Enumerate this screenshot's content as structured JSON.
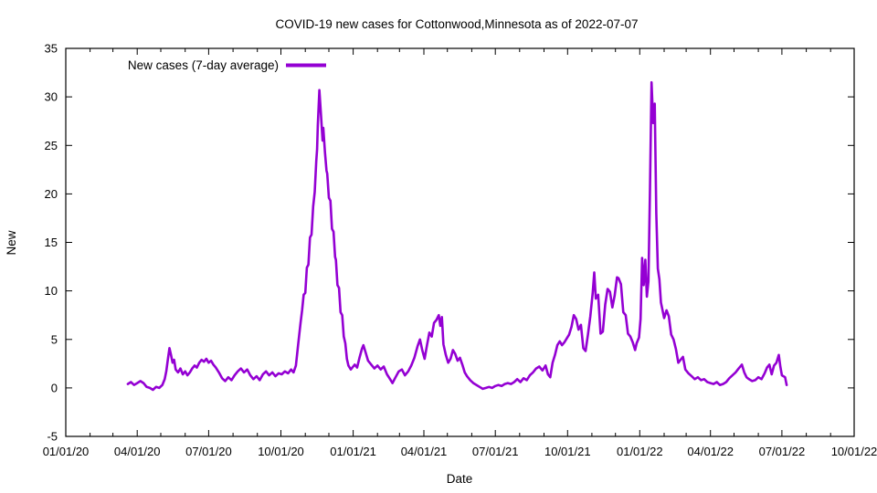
{
  "window": {
    "background": "#ffffff"
  },
  "chart_data": {
    "type": "line",
    "title": "COVID-19 new cases for Cottonwood,Minnesota as of 2022-07-07",
    "xlabel": "Date",
    "ylabel": "New",
    "ylim": [
      -5,
      35
    ],
    "y_ticks": [
      -5,
      0,
      5,
      10,
      15,
      20,
      25,
      30,
      35
    ],
    "x_tick_labels": [
      "01/01/20",
      "04/01/20",
      "07/01/20",
      "10/01/20",
      "01/01/21",
      "04/01/21",
      "07/01/21",
      "10/01/21",
      "01/01/22",
      "04/01/22",
      "07/01/22",
      "10/01/22"
    ],
    "x_minor_ticks": "monthly",
    "grid": false,
    "axis_color": "#000000",
    "legend": {
      "label": "New cases (7-day average)",
      "position": "inside-top-left"
    },
    "series": [
      {
        "name": "New cases (7-day average)",
        "color": "#9400d3",
        "points": [
          [
            "2020-03-20",
            0.4
          ],
          [
            "2020-03-24",
            0.6
          ],
          [
            "2020-03-28",
            0.3
          ],
          [
            "2020-04-01",
            0.5
          ],
          [
            "2020-04-05",
            0.7
          ],
          [
            "2020-04-09",
            0.5
          ],
          [
            "2020-04-13",
            0.1
          ],
          [
            "2020-04-17",
            0.0
          ],
          [
            "2020-04-21",
            -0.2
          ],
          [
            "2020-04-25",
            0.1
          ],
          [
            "2020-04-29",
            0.0
          ],
          [
            "2020-05-03",
            0.3
          ],
          [
            "2020-05-06",
            0.9
          ],
          [
            "2020-05-08",
            1.7
          ],
          [
            "2020-05-10",
            2.9
          ],
          [
            "2020-05-12",
            4.1
          ],
          [
            "2020-05-14",
            3.4
          ],
          [
            "2020-05-16",
            2.6
          ],
          [
            "2020-05-18",
            2.9
          ],
          [
            "2020-05-20",
            1.9
          ],
          [
            "2020-05-23",
            1.6
          ],
          [
            "2020-05-26",
            2.0
          ],
          [
            "2020-05-29",
            1.4
          ],
          [
            "2020-06-01",
            1.7
          ],
          [
            "2020-06-04",
            1.3
          ],
          [
            "2020-06-07",
            1.6
          ],
          [
            "2020-06-10",
            2.0
          ],
          [
            "2020-06-13",
            2.3
          ],
          [
            "2020-06-16",
            2.1
          ],
          [
            "2020-06-19",
            2.6
          ],
          [
            "2020-06-22",
            2.9
          ],
          [
            "2020-06-25",
            2.7
          ],
          [
            "2020-06-28",
            3.0
          ],
          [
            "2020-07-01",
            2.6
          ],
          [
            "2020-07-04",
            2.8
          ],
          [
            "2020-07-07",
            2.4
          ],
          [
            "2020-07-10",
            2.1
          ],
          [
            "2020-07-14",
            1.6
          ],
          [
            "2020-07-18",
            1.0
          ],
          [
            "2020-07-22",
            0.7
          ],
          [
            "2020-07-26",
            1.1
          ],
          [
            "2020-07-30",
            0.8
          ],
          [
            "2020-08-03",
            1.3
          ],
          [
            "2020-08-07",
            1.7
          ],
          [
            "2020-08-11",
            2.0
          ],
          [
            "2020-08-15",
            1.6
          ],
          [
            "2020-08-19",
            1.9
          ],
          [
            "2020-08-23",
            1.3
          ],
          [
            "2020-08-27",
            0.9
          ],
          [
            "2020-08-31",
            1.2
          ],
          [
            "2020-09-04",
            0.8
          ],
          [
            "2020-09-08",
            1.4
          ],
          [
            "2020-09-12",
            1.7
          ],
          [
            "2020-09-16",
            1.3
          ],
          [
            "2020-09-20",
            1.6
          ],
          [
            "2020-09-24",
            1.2
          ],
          [
            "2020-09-28",
            1.5
          ],
          [
            "2020-10-02",
            1.4
          ],
          [
            "2020-10-06",
            1.7
          ],
          [
            "2020-10-10",
            1.5
          ],
          [
            "2020-10-14",
            1.9
          ],
          [
            "2020-10-17",
            1.6
          ],
          [
            "2020-10-20",
            2.3
          ],
          [
            "2020-10-23",
            4.5
          ],
          [
            "2020-10-26",
            6.7
          ],
          [
            "2020-10-28",
            8.0
          ],
          [
            "2020-10-30",
            9.6
          ],
          [
            "2020-11-01",
            9.8
          ],
          [
            "2020-11-03",
            12.4
          ],
          [
            "2020-11-05",
            12.7
          ],
          [
            "2020-11-07",
            15.5
          ],
          [
            "2020-11-09",
            15.8
          ],
          [
            "2020-11-11",
            18.7
          ],
          [
            "2020-11-13",
            20.2
          ],
          [
            "2020-11-15",
            23.4
          ],
          [
            "2020-11-16",
            24.6
          ],
          [
            "2020-11-17",
            27.1
          ],
          [
            "2020-11-18",
            29.0
          ],
          [
            "2020-11-19",
            30.7
          ],
          [
            "2020-11-21",
            28.1
          ],
          [
            "2020-11-23",
            25.5
          ],
          [
            "2020-11-24",
            26.8
          ],
          [
            "2020-11-26",
            24.3
          ],
          [
            "2020-11-28",
            22.4
          ],
          [
            "2020-11-29",
            22.1
          ],
          [
            "2020-12-01",
            19.6
          ],
          [
            "2020-12-03",
            19.3
          ],
          [
            "2020-12-05",
            16.4
          ],
          [
            "2020-12-07",
            16.1
          ],
          [
            "2020-12-09",
            13.5
          ],
          [
            "2020-12-10",
            13.2
          ],
          [
            "2020-12-12",
            10.6
          ],
          [
            "2020-12-14",
            10.3
          ],
          [
            "2020-12-16",
            7.8
          ],
          [
            "2020-12-18",
            7.5
          ],
          [
            "2020-12-20",
            5.3
          ],
          [
            "2020-12-22",
            4.6
          ],
          [
            "2020-12-24",
            3.0
          ],
          [
            "2020-12-26",
            2.3
          ],
          [
            "2020-12-29",
            1.9
          ],
          [
            "2020-12-31",
            2.1
          ],
          [
            "2021-01-03",
            2.4
          ],
          [
            "2021-01-06",
            2.1
          ],
          [
            "2021-01-09",
            3.1
          ],
          [
            "2021-01-12",
            4.0
          ],
          [
            "2021-01-14",
            4.4
          ],
          [
            "2021-01-17",
            3.6
          ],
          [
            "2021-01-20",
            2.8
          ],
          [
            "2021-01-24",
            2.4
          ],
          [
            "2021-01-28",
            2.0
          ],
          [
            "2021-02-01",
            2.3
          ],
          [
            "2021-02-05",
            1.9
          ],
          [
            "2021-02-09",
            2.2
          ],
          [
            "2021-02-13",
            1.4
          ],
          [
            "2021-02-17",
            0.9
          ],
          [
            "2021-02-20",
            0.5
          ],
          [
            "2021-02-24",
            1.1
          ],
          [
            "2021-02-28",
            1.7
          ],
          [
            "2021-03-04",
            1.9
          ],
          [
            "2021-03-08",
            1.3
          ],
          [
            "2021-03-12",
            1.7
          ],
          [
            "2021-03-16",
            2.3
          ],
          [
            "2021-03-20",
            3.1
          ],
          [
            "2021-03-24",
            4.3
          ],
          [
            "2021-03-27",
            5.0
          ],
          [
            "2021-03-30",
            3.9
          ],
          [
            "2021-04-02",
            3.0
          ],
          [
            "2021-04-05",
            4.4
          ],
          [
            "2021-04-08",
            5.7
          ],
          [
            "2021-04-11",
            5.3
          ],
          [
            "2021-04-14",
            6.7
          ],
          [
            "2021-04-17",
            7.0
          ],
          [
            "2021-04-20",
            7.5
          ],
          [
            "2021-04-22",
            6.4
          ],
          [
            "2021-04-24",
            7.3
          ],
          [
            "2021-04-26",
            4.5
          ],
          [
            "2021-04-29",
            3.4
          ],
          [
            "2021-05-02",
            2.6
          ],
          [
            "2021-05-05",
            3.0
          ],
          [
            "2021-05-08",
            3.9
          ],
          [
            "2021-05-11",
            3.5
          ],
          [
            "2021-05-14",
            2.8
          ],
          [
            "2021-05-17",
            3.1
          ],
          [
            "2021-05-20",
            2.4
          ],
          [
            "2021-05-23",
            1.6
          ],
          [
            "2021-05-26",
            1.2
          ],
          [
            "2021-05-30",
            0.8
          ],
          [
            "2021-06-03",
            0.5
          ],
          [
            "2021-06-07",
            0.3
          ],
          [
            "2021-06-11",
            0.1
          ],
          [
            "2021-06-15",
            -0.1
          ],
          [
            "2021-06-19",
            0.0
          ],
          [
            "2021-06-23",
            0.1
          ],
          [
            "2021-06-27",
            0.0
          ],
          [
            "2021-07-01",
            0.2
          ],
          [
            "2021-07-05",
            0.3
          ],
          [
            "2021-07-09",
            0.2
          ],
          [
            "2021-07-13",
            0.4
          ],
          [
            "2021-07-17",
            0.5
          ],
          [
            "2021-07-21",
            0.4
          ],
          [
            "2021-07-25",
            0.6
          ],
          [
            "2021-07-29",
            0.9
          ],
          [
            "2021-08-02",
            0.6
          ],
          [
            "2021-08-06",
            1.0
          ],
          [
            "2021-08-10",
            0.8
          ],
          [
            "2021-08-14",
            1.3
          ],
          [
            "2021-08-18",
            1.6
          ],
          [
            "2021-08-22",
            2.0
          ],
          [
            "2021-08-26",
            2.2
          ],
          [
            "2021-08-30",
            1.8
          ],
          [
            "2021-09-03",
            2.3
          ],
          [
            "2021-09-06",
            1.4
          ],
          [
            "2021-09-09",
            1.1
          ],
          [
            "2021-09-12",
            2.6
          ],
          [
            "2021-09-15",
            3.4
          ],
          [
            "2021-09-18",
            4.4
          ],
          [
            "2021-09-21",
            4.8
          ],
          [
            "2021-09-24",
            4.4
          ],
          [
            "2021-09-27",
            4.7
          ],
          [
            "2021-09-30",
            5.1
          ],
          [
            "2021-10-03",
            5.5
          ],
          [
            "2021-10-06",
            6.3
          ],
          [
            "2021-10-09",
            7.5
          ],
          [
            "2021-10-12",
            7.1
          ],
          [
            "2021-10-15",
            6.0
          ],
          [
            "2021-10-18",
            6.5
          ],
          [
            "2021-10-21",
            4.1
          ],
          [
            "2021-10-24",
            3.8
          ],
          [
            "2021-10-27",
            5.5
          ],
          [
            "2021-10-30",
            7.4
          ],
          [
            "2021-11-02",
            9.8
          ],
          [
            "2021-11-04",
            11.9
          ],
          [
            "2021-11-06",
            9.2
          ],
          [
            "2021-11-09",
            9.6
          ],
          [
            "2021-11-12",
            5.6
          ],
          [
            "2021-11-15",
            5.8
          ],
          [
            "2021-11-18",
            8.6
          ],
          [
            "2021-11-21",
            10.2
          ],
          [
            "2021-11-24",
            9.9
          ],
          [
            "2021-11-27",
            8.3
          ],
          [
            "2021-11-30",
            9.5
          ],
          [
            "2021-12-03",
            11.4
          ],
          [
            "2021-12-05",
            11.3
          ],
          [
            "2021-12-08",
            10.7
          ],
          [
            "2021-12-11",
            7.8
          ],
          [
            "2021-12-14",
            7.5
          ],
          [
            "2021-12-17",
            5.6
          ],
          [
            "2021-12-20",
            5.3
          ],
          [
            "2021-12-23",
            4.7
          ],
          [
            "2021-12-26",
            3.9
          ],
          [
            "2021-12-28",
            4.6
          ],
          [
            "2021-12-31",
            5.2
          ],
          [
            "2022-01-02",
            7.1
          ],
          [
            "2022-01-04",
            13.4
          ],
          [
            "2022-01-06",
            10.6
          ],
          [
            "2022-01-08",
            13.2
          ],
          [
            "2022-01-10",
            9.4
          ],
          [
            "2022-01-12",
            11.0
          ],
          [
            "2022-01-14",
            20.5
          ],
          [
            "2022-01-16",
            31.5
          ],
          [
            "2022-01-18",
            27.3
          ],
          [
            "2022-01-20",
            29.3
          ],
          [
            "2022-01-22",
            18.0
          ],
          [
            "2022-01-24",
            12.3
          ],
          [
            "2022-01-26",
            11.2
          ],
          [
            "2022-01-28",
            8.8
          ],
          [
            "2022-02-01",
            7.2
          ],
          [
            "2022-02-04",
            8.0
          ],
          [
            "2022-02-07",
            7.4
          ],
          [
            "2022-02-10",
            5.5
          ],
          [
            "2022-02-13",
            5.0
          ],
          [
            "2022-02-16",
            4.0
          ],
          [
            "2022-02-19",
            2.6
          ],
          [
            "2022-02-22",
            2.9
          ],
          [
            "2022-02-25",
            3.2
          ],
          [
            "2022-02-28",
            1.9
          ],
          [
            "2022-03-04",
            1.5
          ],
          [
            "2022-03-08",
            1.2
          ],
          [
            "2022-03-12",
            0.9
          ],
          [
            "2022-03-16",
            1.1
          ],
          [
            "2022-03-20",
            0.8
          ],
          [
            "2022-03-24",
            0.9
          ],
          [
            "2022-03-28",
            0.6
          ],
          [
            "2022-04-01",
            0.5
          ],
          [
            "2022-04-05",
            0.4
          ],
          [
            "2022-04-09",
            0.6
          ],
          [
            "2022-04-13",
            0.3
          ],
          [
            "2022-04-17",
            0.4
          ],
          [
            "2022-04-21",
            0.6
          ],
          [
            "2022-04-25",
            1.0
          ],
          [
            "2022-04-29",
            1.3
          ],
          [
            "2022-05-03",
            1.6
          ],
          [
            "2022-05-07",
            2.0
          ],
          [
            "2022-05-11",
            2.4
          ],
          [
            "2022-05-14",
            1.6
          ],
          [
            "2022-05-17",
            1.1
          ],
          [
            "2022-05-20",
            0.9
          ],
          [
            "2022-05-24",
            0.7
          ],
          [
            "2022-05-28",
            0.8
          ],
          [
            "2022-06-01",
            1.1
          ],
          [
            "2022-06-05",
            0.9
          ],
          [
            "2022-06-09",
            1.5
          ],
          [
            "2022-06-12",
            2.1
          ],
          [
            "2022-06-15",
            2.4
          ],
          [
            "2022-06-18",
            1.4
          ],
          [
            "2022-06-21",
            2.3
          ],
          [
            "2022-06-24",
            2.6
          ],
          [
            "2022-06-27",
            3.4
          ],
          [
            "2022-06-29",
            2.2
          ],
          [
            "2022-07-01",
            1.3
          ],
          [
            "2022-07-03",
            1.2
          ],
          [
            "2022-07-05",
            1.1
          ],
          [
            "2022-07-07",
            0.3
          ]
        ]
      }
    ]
  }
}
